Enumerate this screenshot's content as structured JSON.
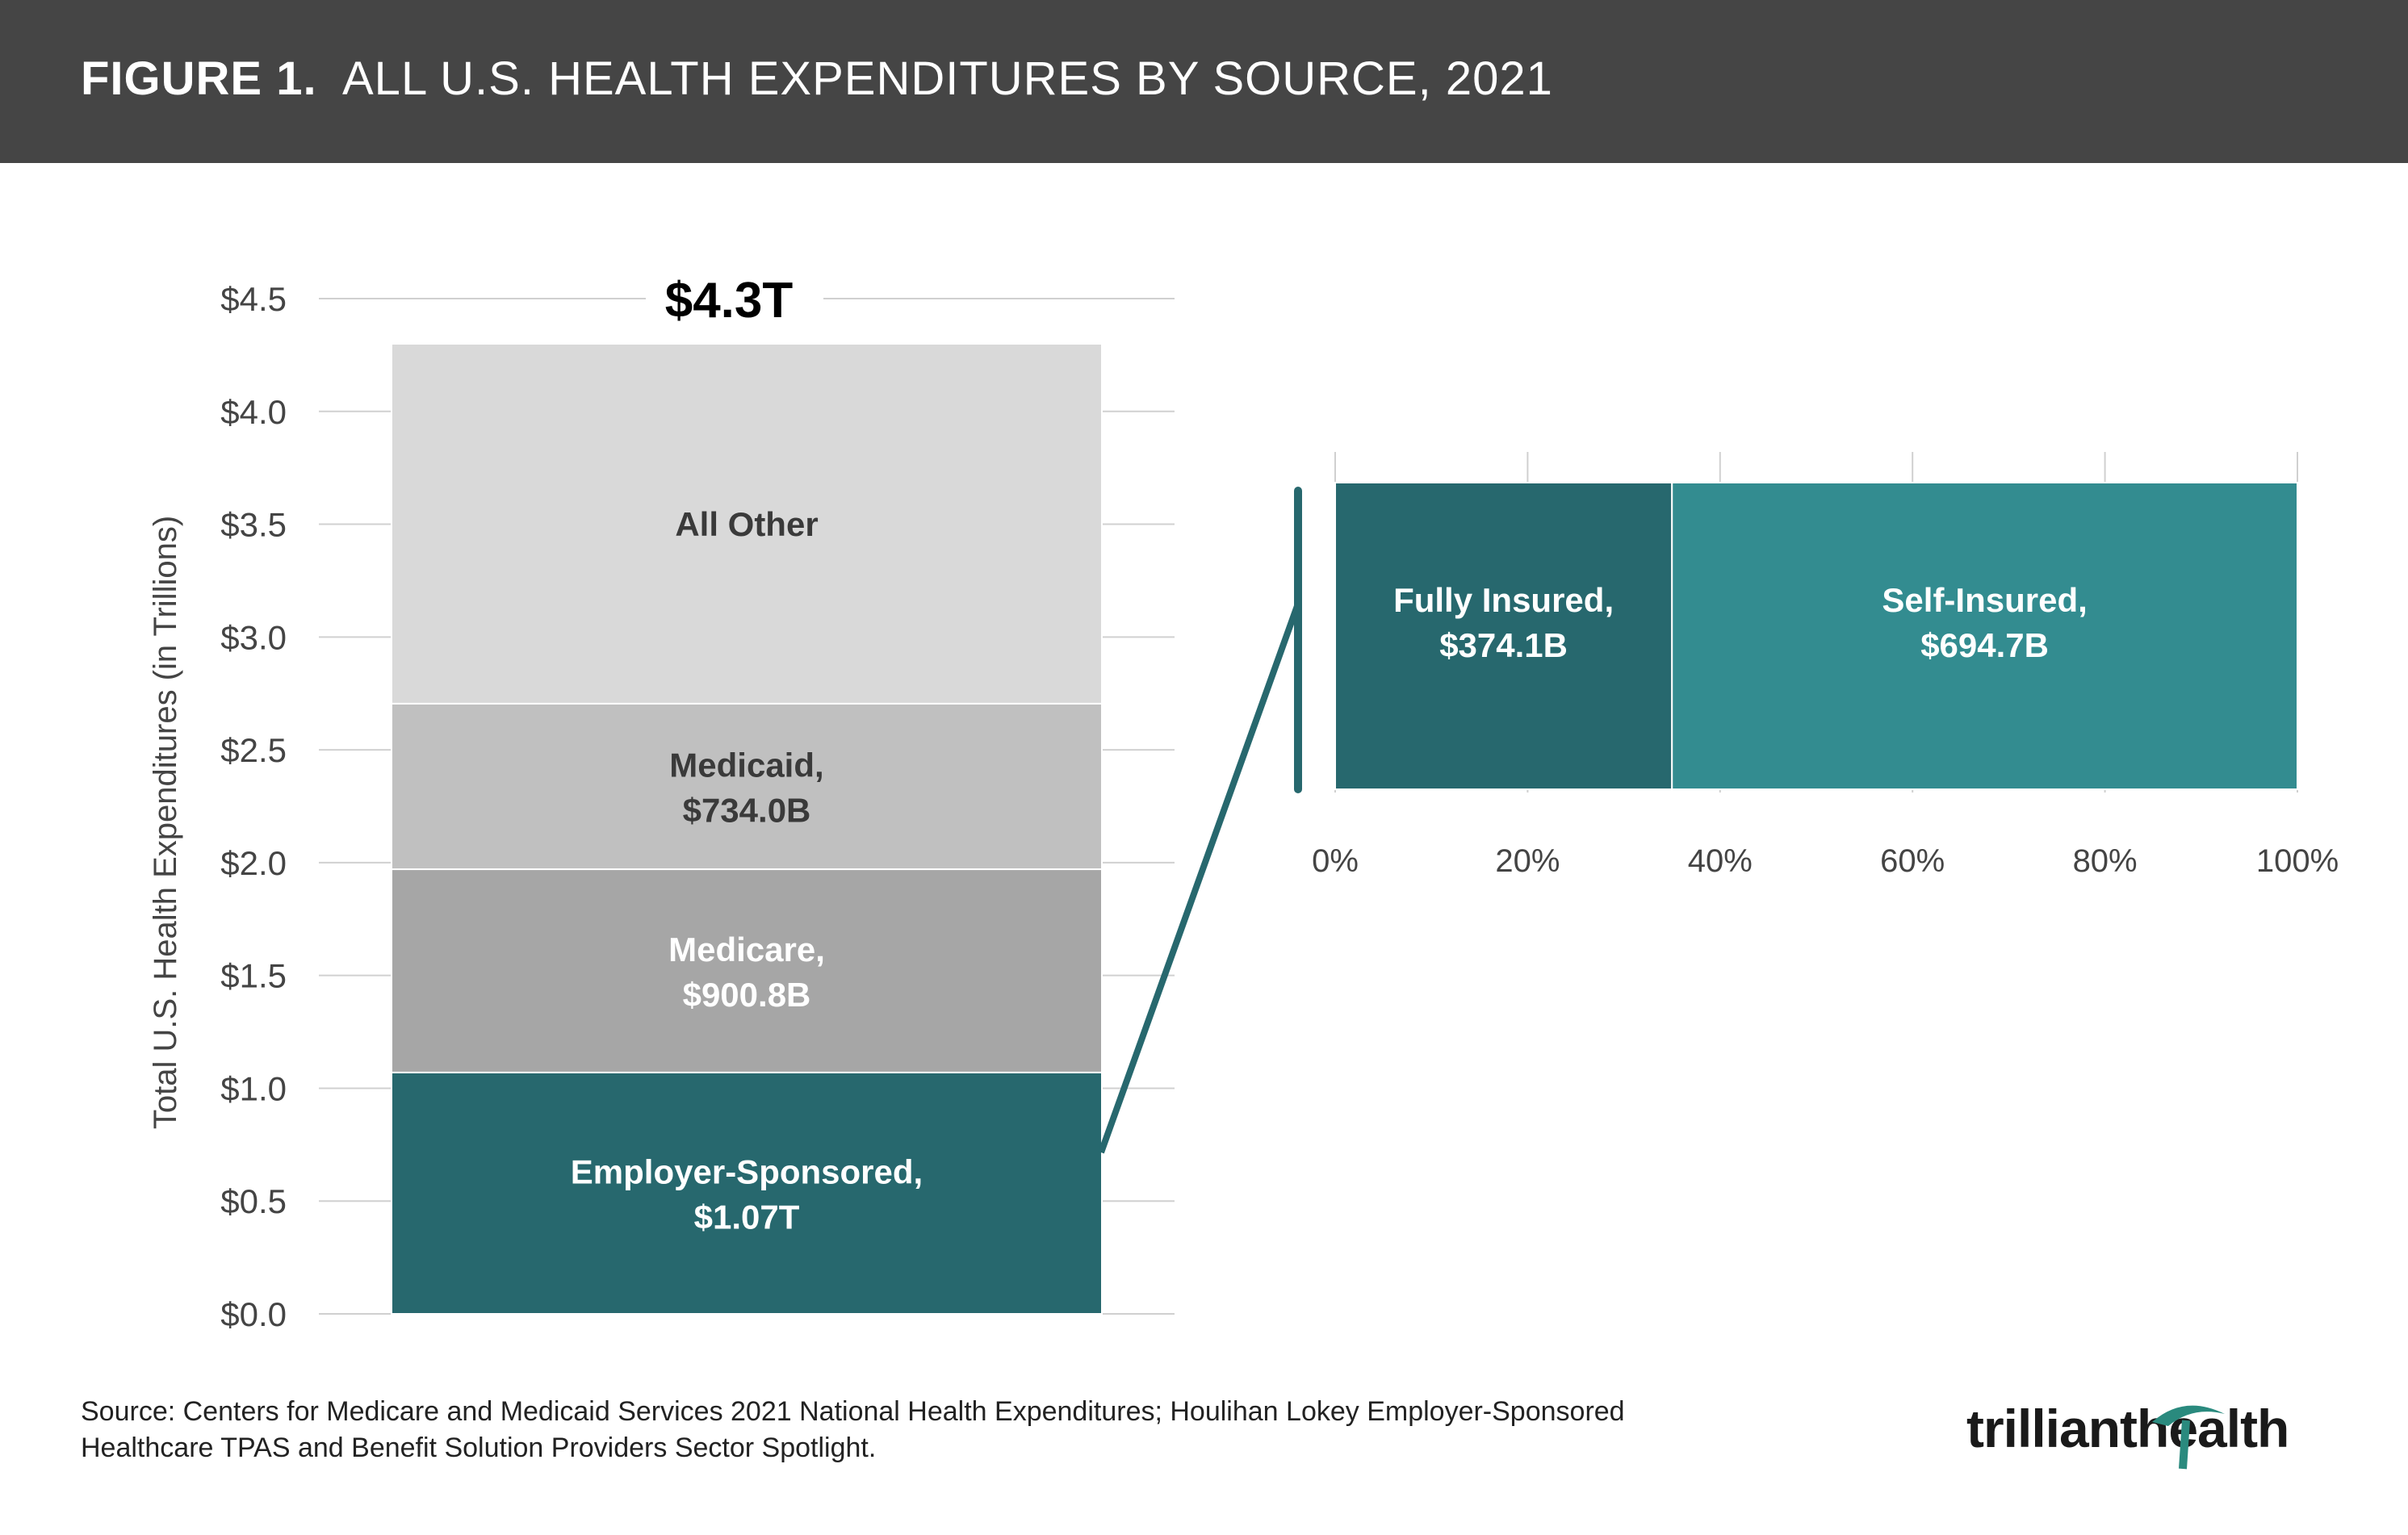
{
  "header": {
    "figure_label": "FIGURE 1.",
    "title": "ALL U.S. HEALTH EXPENDITURES BY SOURCE, 2021"
  },
  "chart_data": [
    {
      "type": "bar",
      "stacked": true,
      "ylabel": "Total U.S. Health Expenditures (in Trillions)",
      "ylim": [
        0,
        4.5
      ],
      "yticks": [
        "$0.0",
        "$0.5",
        "$1.0",
        "$1.5",
        "$2.0",
        "$2.5",
        "$3.0",
        "$3.5",
        "$4.0",
        "$4.5"
      ],
      "total_label": "$4.3T",
      "total": 4.3,
      "grid": true,
      "segments": [
        {
          "name": "Employer-Sponsored,",
          "value_label": "$1.07T",
          "value": 1.07,
          "color": "#27686e",
          "text_color": "#ffffff"
        },
        {
          "name": "Medicare,",
          "value_label": "$900.8B",
          "value": 0.9008,
          "color": "#a6a6a6",
          "text_color": "#ffffff"
        },
        {
          "name": "Medicaid,",
          "value_label": "$734.0B",
          "value": 0.734,
          "color": "#c0c0c0",
          "text_color": "#3a3a3a"
        },
        {
          "name": "All Other",
          "value_label": "",
          "value": 1.595,
          "color": "#d9d9d9",
          "text_color": "#3a3a3a"
        }
      ]
    },
    {
      "type": "bar",
      "orientation": "horizontal",
      "stacked": true,
      "xlim": [
        0,
        100
      ],
      "xticks": [
        "0%",
        "20%",
        "40%",
        "60%",
        "80%",
        "100%"
      ],
      "segments": [
        {
          "name": "Fully Insured,",
          "value_label": "$374.1B",
          "value": 374.1,
          "color": "#27686e",
          "text_color": "#ffffff"
        },
        {
          "name": "Self-Insured,",
          "value_label": "$694.7B",
          "value": 694.7,
          "color": "#338c90",
          "text_color": "#ffffff"
        }
      ]
    }
  ],
  "footer": {
    "source_line1": "Source: Centers for Medicare and Medicaid Services 2021 National Health Expenditures; Houlihan Lokey Employer-Sponsored",
    "source_line2": "Healthcare TPAS and Benefit Solution Providers Sector Spotlight."
  },
  "logo": {
    "text_part1": "trilliant",
    "text_part2": "health",
    "accent_color": "#2a8a7e"
  }
}
